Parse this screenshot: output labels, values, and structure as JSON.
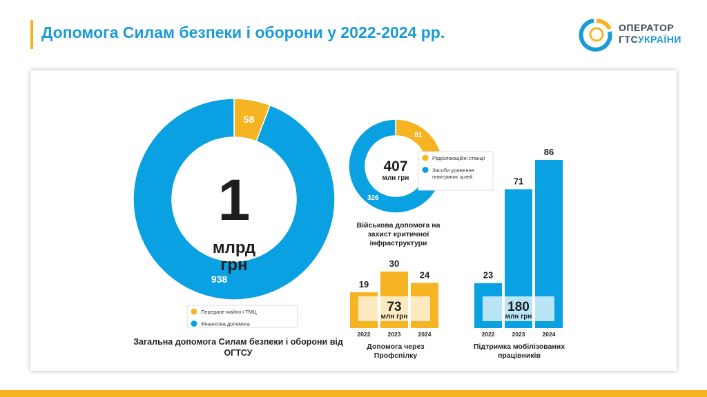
{
  "page": {
    "title": "Допомога Силам безпеки і оборони у 2022-2024 рр.",
    "logo": {
      "line1": "ОПЕРАТОР",
      "line2_prefix": "ГТС",
      "line2_accent": "УКРАЇНИ"
    }
  },
  "colors": {
    "blue": "#0aa1e2",
    "yellow": "#f7b422",
    "title_blue": "#1a9ad6"
  },
  "chart_data": [
    {
      "type": "pie",
      "center": {
        "value": "1",
        "unit": "млрд грн"
      },
      "slices": [
        {
          "label": "Передане майно і ТМЦ",
          "value": 58,
          "color": "#f7b422"
        },
        {
          "label": "Фінансова допомога",
          "value": 938,
          "color": "#0aa1e2"
        }
      ],
      "caption": "Загальна допомога Силам безпеки і оборони від ОГТСУ"
    },
    {
      "type": "pie",
      "center": {
        "value": "407",
        "unit": "млн грн"
      },
      "slices": [
        {
          "label": "Радіолокаційні станції",
          "value": 81,
          "color": "#f7b422"
        },
        {
          "label": "Засоби ураження повітряних цілей",
          "value": 326,
          "color": "#0aa1e2"
        }
      ],
      "caption": "Військова допомога на захист критичної інфраструктури"
    },
    {
      "type": "bar",
      "categories": [
        "2022",
        "2023",
        "2024"
      ],
      "values": [
        19,
        30,
        24
      ],
      "color": "#f7b422",
      "total": {
        "value": "73",
        "unit": "млн грн"
      },
      "caption": "Допомога через Профспілку"
    },
    {
      "type": "bar",
      "categories": [
        "2022",
        "2023",
        "2024"
      ],
      "values": [
        23,
        71,
        86
      ],
      "color": "#0aa1e2",
      "total": {
        "value": "180",
        "unit": "млн грн"
      },
      "caption": "Підтримка мобілізованих працівників"
    }
  ]
}
